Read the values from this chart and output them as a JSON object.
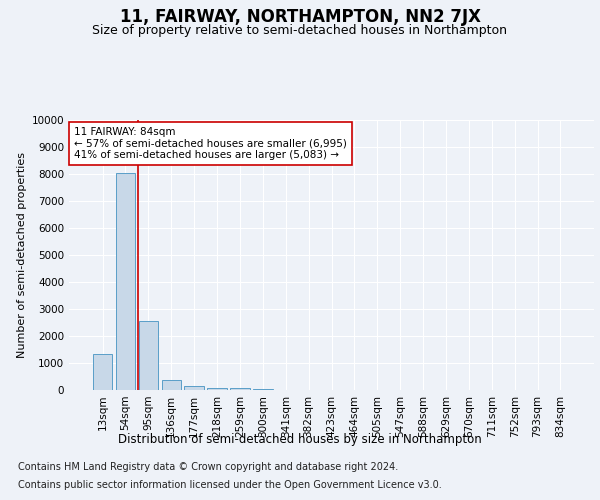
{
  "title": "11, FAIRWAY, NORTHAMPTON, NN2 7JX",
  "subtitle": "Size of property relative to semi-detached houses in Northampton",
  "xlabel": "Distribution of semi-detached houses by size in Northampton",
  "ylabel": "Number of semi-detached properties",
  "categories": [
    "13sqm",
    "54sqm",
    "95sqm",
    "136sqm",
    "177sqm",
    "218sqm",
    "259sqm",
    "300sqm",
    "341sqm",
    "382sqm",
    "423sqm",
    "464sqm",
    "505sqm",
    "547sqm",
    "588sqm",
    "629sqm",
    "670sqm",
    "711sqm",
    "752sqm",
    "793sqm",
    "834sqm"
  ],
  "values": [
    1320,
    8050,
    2550,
    380,
    140,
    90,
    70,
    50,
    0,
    0,
    0,
    0,
    0,
    0,
    0,
    0,
    0,
    0,
    0,
    0,
    0
  ],
  "bar_color": "#c8d8e8",
  "bar_edge_color": "#5a9ec8",
  "property_line_x": 1.55,
  "property_line_color": "#cc0000",
  "annotation_text": "11 FAIRWAY: 84sqm\n← 57% of semi-detached houses are smaller (6,995)\n41% of semi-detached houses are larger (5,083) →",
  "annotation_box_color": "#ffffff",
  "annotation_box_edge_color": "#cc0000",
  "ylim": [
    0,
    10000
  ],
  "yticks": [
    0,
    1000,
    2000,
    3000,
    4000,
    5000,
    6000,
    7000,
    8000,
    9000,
    10000
  ],
  "footer_line1": "Contains HM Land Registry data © Crown copyright and database right 2024.",
  "footer_line2": "Contains public sector information licensed under the Open Government Licence v3.0.",
  "bg_color": "#eef2f8",
  "plot_bg_color": "#eef2f8",
  "title_fontsize": 12,
  "subtitle_fontsize": 9,
  "footer_fontsize": 7,
  "annot_fontsize": 7.5,
  "ylabel_fontsize": 8,
  "xlabel_fontsize": 8.5,
  "tick_fontsize": 7.5
}
